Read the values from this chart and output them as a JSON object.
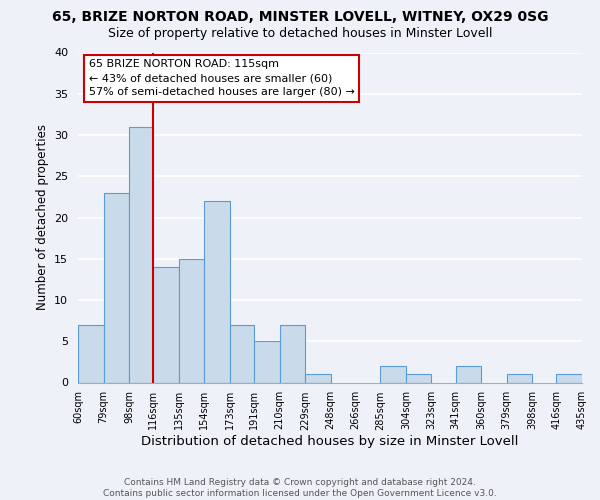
{
  "title": "65, BRIZE NORTON ROAD, MINSTER LOVELL, WITNEY, OX29 0SG",
  "subtitle": "Size of property relative to detached houses in Minster Lovell",
  "xlabel": "Distribution of detached houses by size in Minster Lovell",
  "ylabel": "Number of detached properties",
  "bar_color": "#c9daea",
  "bar_edge_color": "#5b9bd5",
  "background_color": "#eef2f8",
  "grid_color": "#ffffff",
  "vline_x": 116,
  "vline_color": "#cc0000",
  "bin_edges": [
    60,
    79,
    98,
    116,
    135,
    154,
    173,
    191,
    210,
    229,
    248,
    266,
    285,
    304,
    323,
    341,
    360,
    379,
    398,
    416,
    435
  ],
  "bin_labels": [
    "60sqm",
    "79sqm",
    "98sqm",
    "116sqm",
    "135sqm",
    "154sqm",
    "173sqm",
    "191sqm",
    "210sqm",
    "229sqm",
    "248sqm",
    "266sqm",
    "285sqm",
    "304sqm",
    "323sqm",
    "341sqm",
    "360sqm",
    "379sqm",
    "398sqm",
    "416sqm",
    "435sqm"
  ],
  "counts": [
    7,
    23,
    31,
    14,
    15,
    22,
    7,
    5,
    7,
    1,
    0,
    0,
    2,
    1,
    0,
    2,
    0,
    1,
    0,
    1
  ],
  "ylim": [
    0,
    40
  ],
  "yticks": [
    0,
    5,
    10,
    15,
    20,
    25,
    30,
    35,
    40
  ],
  "annotation_title": "65 BRIZE NORTON ROAD: 115sqm",
  "annotation_line1": "← 43% of detached houses are smaller (60)",
  "annotation_line2": "57% of semi-detached houses are larger (80) →",
  "footer_line1": "Contains HM Land Registry data © Crown copyright and database right 2024.",
  "footer_line2": "Contains public sector information licensed under the Open Government Licence v3.0.",
  "title_fontsize": 10,
  "subtitle_fontsize": 9,
  "xlabel_fontsize": 9.5,
  "ylabel_fontsize": 8.5,
  "annot_fontsize": 8,
  "footer_fontsize": 6.5
}
